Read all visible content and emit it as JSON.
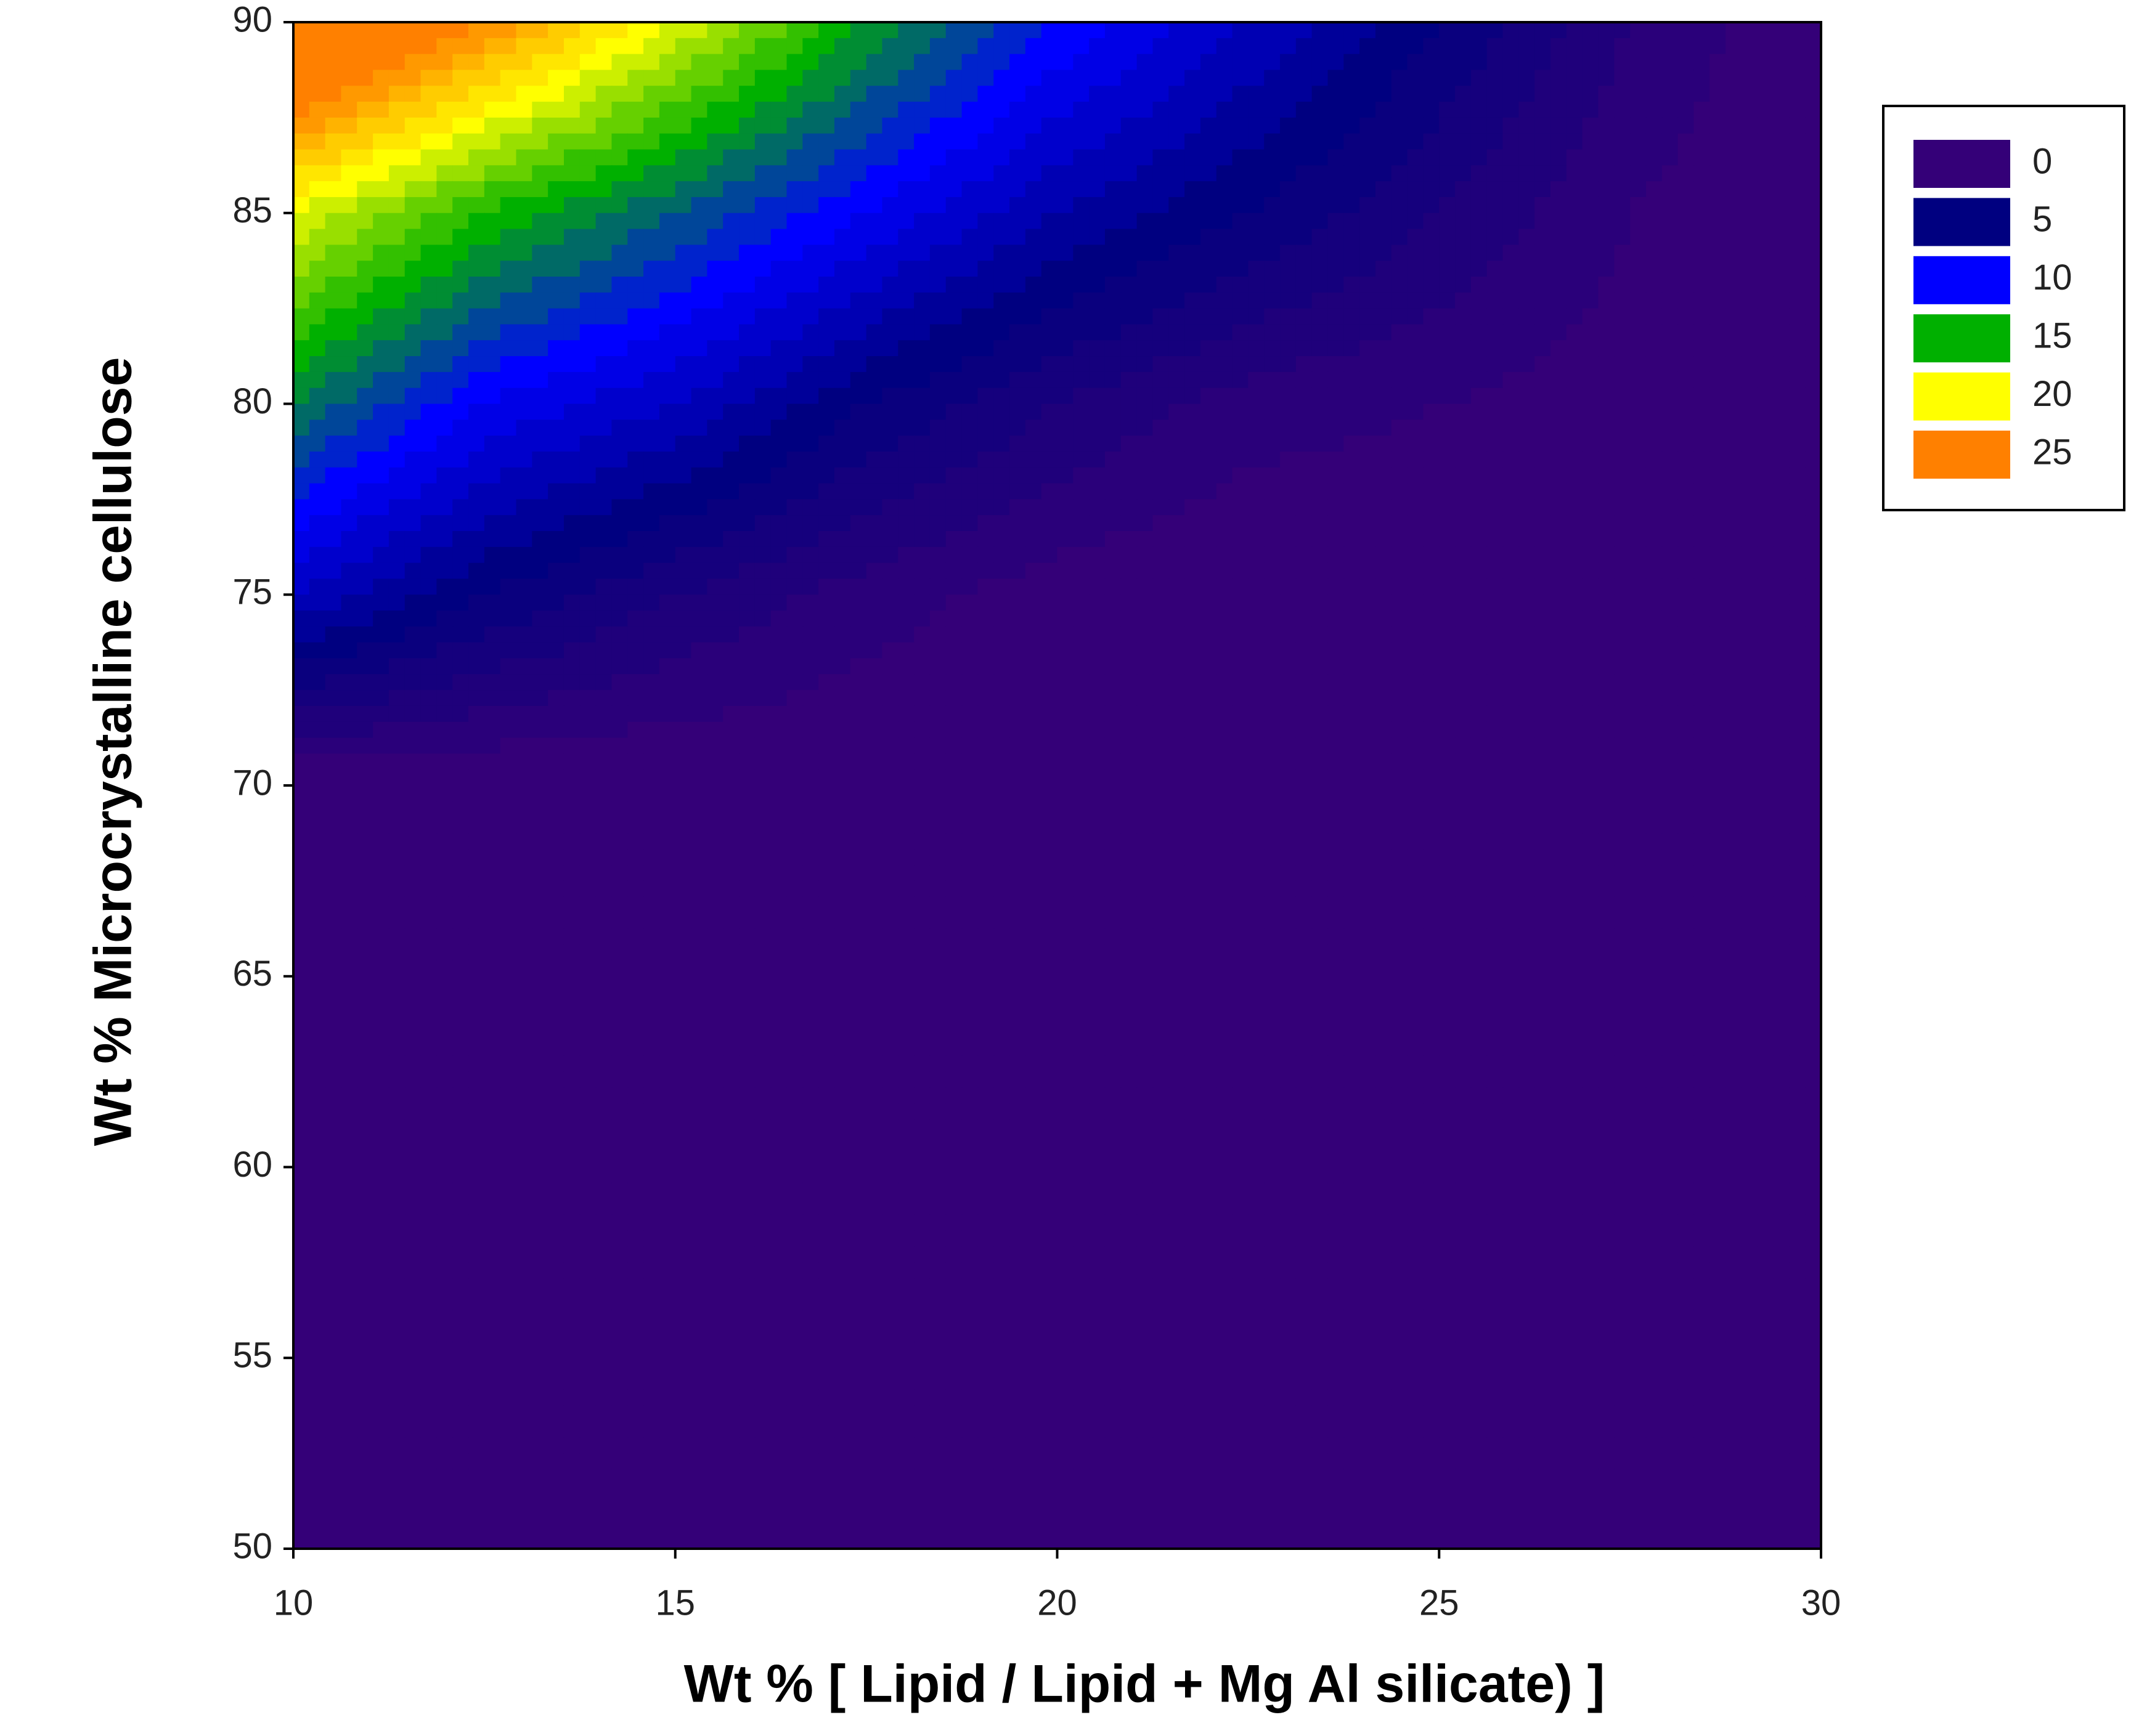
{
  "chart_data": {
    "type": "contour",
    "x_label": "Wt % [ Lipid / Lipid + Mg Al silicate) ]",
    "y_label": "Wt % Microcrystalline cellulose",
    "x": [
      10,
      12.5,
      15,
      17.5,
      20,
      22.5,
      25,
      27.5,
      30
    ],
    "y": [
      90,
      85,
      80,
      75,
      70,
      65,
      60,
      55,
      50
    ],
    "z": [
      [
        30,
        25,
        20,
        15,
        11,
        8,
        5,
        2,
        0
      ],
      [
        20,
        16,
        13,
        10,
        7,
        5,
        3,
        1,
        0
      ],
      [
        14,
        10,
        8,
        5,
        3,
        1.5,
        1,
        0.5,
        0
      ],
      [
        8,
        5,
        3,
        1.5,
        0.5,
        0,
        0,
        0,
        0
      ],
      [
        0,
        0,
        0,
        0,
        0,
        0,
        0,
        0,
        0
      ],
      [
        0,
        0,
        0,
        0,
        0,
        0,
        0,
        0,
        0
      ],
      [
        0,
        0,
        0,
        0,
        0,
        0,
        0,
        0,
        0
      ],
      [
        0,
        0,
        0,
        0,
        0,
        0,
        0,
        0,
        0
      ],
      [
        0,
        0,
        0,
        0,
        0,
        0,
        0,
        0,
        0
      ]
    ],
    "levels": [
      0,
      5,
      10,
      15,
      20,
      25
    ],
    "level_colors": [
      "#340078",
      "#000080",
      "#0000ff",
      "#00b000",
      "#ffff00",
      "#ff8000"
    ],
    "xlim": [
      10,
      30
    ],
    "xticks": [
      10,
      15,
      20,
      25,
      30
    ],
    "ylim": [
      50,
      90
    ],
    "yticks": [
      50,
      55,
      60,
      65,
      70,
      75,
      80,
      85,
      90
    ],
    "legend": "right"
  }
}
